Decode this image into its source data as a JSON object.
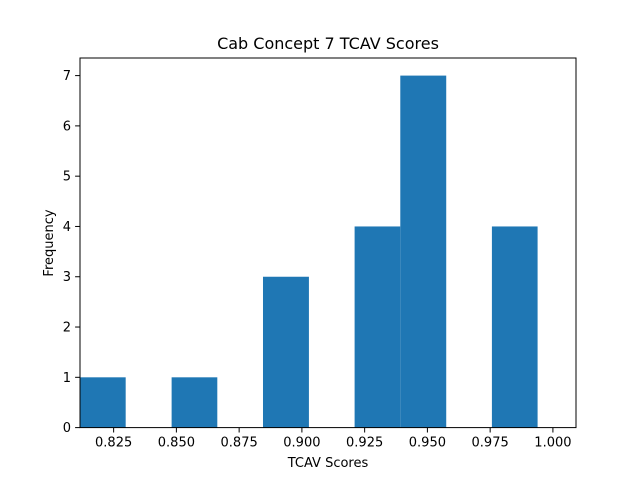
{
  "chart_data": {
    "type": "bar",
    "title": "Cab Concept 7 TCAV Scores",
    "xlabel": "TCAV Scores",
    "ylabel": "Frequency",
    "xlim": [
      0.8116,
      1.0092
    ],
    "ylim": [
      0,
      7.35
    ],
    "bar_color": "#1f77b4",
    "bins": [
      {
        "x0": 0.8116,
        "x1": 0.8298,
        "value": 1
      },
      {
        "x0": 0.8298,
        "x1": 0.8481,
        "value": 0
      },
      {
        "x0": 0.8481,
        "x1": 0.8663,
        "value": 1
      },
      {
        "x0": 0.8663,
        "x1": 0.8845,
        "value": 0
      },
      {
        "x0": 0.8845,
        "x1": 0.9028,
        "value": 3
      },
      {
        "x0": 0.9028,
        "x1": 0.921,
        "value": 0
      },
      {
        "x0": 0.921,
        "x1": 0.9392,
        "value": 4
      },
      {
        "x0": 0.9392,
        "x1": 0.9575,
        "value": 7
      },
      {
        "x0": 0.9575,
        "x1": 0.9757,
        "value": 0
      },
      {
        "x0": 0.9757,
        "x1": 0.9939,
        "value": 4
      }
    ],
    "xticks": [
      0.825,
      0.85,
      0.875,
      0.9,
      0.925,
      0.95,
      0.975,
      1.0
    ],
    "xtick_labels": [
      "0.825",
      "0.850",
      "0.875",
      "0.900",
      "0.925",
      "0.950",
      "0.975",
      "1.000"
    ],
    "yticks": [
      0,
      1,
      2,
      3,
      4,
      5,
      6,
      7
    ],
    "ytick_labels": [
      "0",
      "1",
      "2",
      "3",
      "4",
      "5",
      "6",
      "7"
    ],
    "grid": false,
    "legend": "none"
  }
}
